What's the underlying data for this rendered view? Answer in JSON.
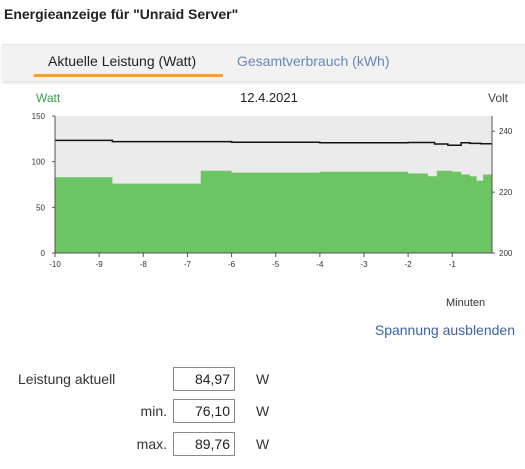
{
  "page": {
    "title": "Energieanzeige für \"Unraid Server\""
  },
  "tabs": [
    {
      "label": "Aktuelle Leistung (Watt)",
      "active": true
    },
    {
      "label": "Gesamtverbrauch (kWh)",
      "active": false
    }
  ],
  "colors": {
    "accent": "#e8a43a",
    "power_fill": "#6cc462",
    "voltage_line": "#111111",
    "link": "#3a64a8",
    "plot_bg": "#ebebeb"
  },
  "chart_data": {
    "type": "area",
    "date": "12.4.2021",
    "left_axis_label": "Watt",
    "right_axis_label": "Volt",
    "x_axis_label": "Minuten",
    "x_ticks": [
      "-10",
      "-9",
      "-8",
      "-7",
      "-6",
      "-5",
      "-4",
      "-3",
      "-2",
      "-1"
    ],
    "y_left_ticks": [
      "0",
      "50",
      "100",
      "150"
    ],
    "y_right_ticks": [
      "200",
      "220",
      "240"
    ],
    "xlim": [
      -10,
      -0.1
    ],
    "ylim_left": [
      0,
      150
    ],
    "ylim_right": [
      200,
      245
    ],
    "grid": false,
    "series": [
      {
        "name": "Watt",
        "axis": "left",
        "step": true,
        "x": [
          -10,
          -8.7,
          -6.7,
          -6.0,
          -4.0,
          -2.0,
          -1.55,
          -1.35,
          -1.0,
          -0.8,
          -0.6,
          -0.45,
          -0.3,
          -0.1
        ],
        "y": [
          83,
          76,
          90,
          88,
          89,
          87,
          84,
          90,
          89,
          86,
          84,
          79,
          86,
          86
        ]
      },
      {
        "name": "Volt",
        "axis": "right",
        "step": true,
        "x": [
          -10,
          -8.7,
          -6.0,
          -4.0,
          -2.0,
          -1.4,
          -1.1,
          -0.8,
          -0.6,
          -0.35,
          -0.1
        ],
        "y": [
          237.0,
          236.6,
          236.4,
          236.2,
          236.3,
          235.8,
          235.4,
          236.2,
          236.0,
          235.9,
          235.9
        ]
      }
    ]
  },
  "toggle_voltage": {
    "label": "Spannung ausblenden"
  },
  "stats": {
    "current": {
      "label": "Leistung aktuell",
      "value": "84,97",
      "unit": "W"
    },
    "min": {
      "label": "min.",
      "value": "76,10",
      "unit": "W"
    },
    "max": {
      "label": "max.",
      "value": "89,76",
      "unit": "W"
    }
  }
}
